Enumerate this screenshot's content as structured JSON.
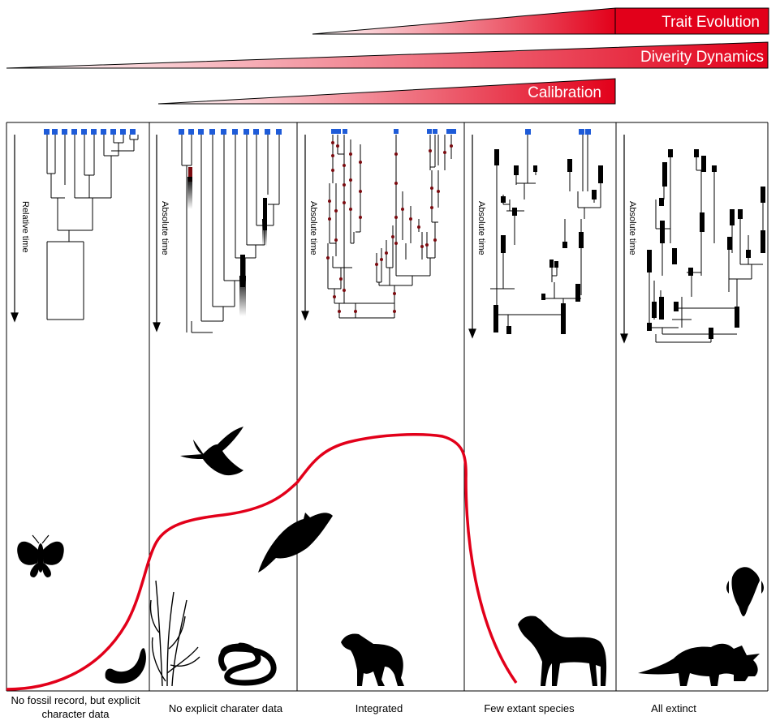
{
  "wedges": {
    "trait_evolution": "Trait Evolution",
    "diversity_dynamics": "Diverity Dynamics",
    "calibration": "Calibration"
  },
  "panels": [
    {
      "time_label": "Relative time",
      "caption_line1": "No fossil record, but explicit",
      "caption_line2": "character data"
    },
    {
      "time_label": "Absolute time",
      "caption_line1": "No explicit charater data",
      "caption_line2": ""
    },
    {
      "time_label": "Absolute time",
      "caption_line1": "Integrated",
      "caption_line2": ""
    },
    {
      "time_label": "Absolute time",
      "caption_line1": "Few extant species",
      "caption_line2": ""
    },
    {
      "time_label": "Absolute time",
      "caption_line1": "All extinct",
      "caption_line2": ""
    }
  ],
  "colors": {
    "accent_red": "#e2001a",
    "tip_blue": "#1e5bd8",
    "node_red": "#b3242c",
    "silhouette": "#000000"
  },
  "icons": [
    "moth-icon",
    "banana-icon",
    "reed-plant-icon",
    "snake-icon",
    "hummingbird-icon",
    "orca-icon",
    "dog-icon",
    "horse-icon",
    "trilobite-icon",
    "triceratops-icon"
  ]
}
